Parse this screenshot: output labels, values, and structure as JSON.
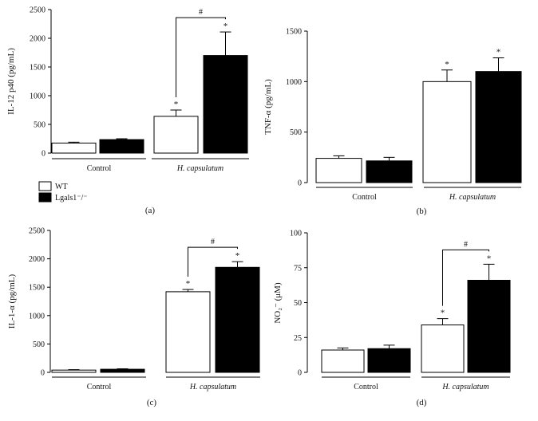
{
  "colors": {
    "wt": "#ffffff",
    "ko": "#000000",
    "stroke": "#000000"
  },
  "legend": {
    "wt_label": "WT",
    "ko_label": "Lgals1⁻/⁻"
  },
  "chart_data": [
    {
      "type": "bar",
      "panel_label": "(a)",
      "ylabel": "IL-12 p40 (pg/mL)",
      "ylim": [
        0,
        2500
      ],
      "yticks": [
        0,
        500,
        1000,
        1500,
        2000,
        2500
      ],
      "groups": [
        "Control",
        "H. capsulatum"
      ],
      "series": [
        {
          "name": "WT",
          "values": [
            175,
            640
          ],
          "errors": [
            15,
            110
          ]
        },
        {
          "name": "Lgals1⁻/⁻",
          "values": [
            235,
            1700
          ],
          "errors": [
            15,
            410
          ]
        }
      ],
      "stars": [
        "",
        "",
        "*",
        "*"
      ],
      "hash": {
        "group": 1,
        "label": "#"
      }
    },
    {
      "type": "bar",
      "panel_label": "(b)",
      "ylabel": "TNF-α (pg/mL)",
      "ylim": [
        0,
        1500
      ],
      "yticks": [
        0,
        500,
        1000,
        1500
      ],
      "groups": [
        "Control",
        "H. capsulatum"
      ],
      "series": [
        {
          "name": "WT",
          "values": [
            240,
            1000
          ],
          "errors": [
            25,
            115
          ]
        },
        {
          "name": "Lgals1⁻/⁻",
          "values": [
            215,
            1100
          ],
          "errors": [
            35,
            135
          ]
        }
      ],
      "stars": [
        "",
        "",
        "*",
        "*"
      ],
      "hash": null
    },
    {
      "type": "bar",
      "panel_label": "(c)",
      "ylabel": "IL-1-α (pg/mL)",
      "ylim": [
        0,
        2500
      ],
      "yticks": [
        0,
        500,
        1000,
        1500,
        2000,
        2500
      ],
      "groups": [
        "Control",
        "H. capsulatum"
      ],
      "series": [
        {
          "name": "WT",
          "values": [
            40,
            1420
          ],
          "errors": [
            8,
            40
          ]
        },
        {
          "name": "Lgals1⁻/⁻",
          "values": [
            55,
            1850
          ],
          "errors": [
            8,
            100
          ]
        }
      ],
      "stars": [
        "",
        "",
        "*",
        "*"
      ],
      "hash": {
        "group": 1,
        "label": "#"
      }
    },
    {
      "type": "bar",
      "panel_label": "(d)",
      "ylabel": "NO₂⁻ (μM)",
      "ylim": [
        0,
        100
      ],
      "yticks": [
        0,
        25,
        50,
        75,
        100
      ],
      "groups": [
        "Control",
        "H. capsulatum"
      ],
      "series": [
        {
          "name": "WT",
          "values": [
            16,
            34
          ],
          "errors": [
            1.5,
            4.5
          ]
        },
        {
          "name": "Lgals1⁻/⁻",
          "values": [
            17,
            66
          ],
          "errors": [
            2.5,
            11.5
          ]
        }
      ],
      "stars": [
        "",
        "",
        "*",
        "*"
      ],
      "hash": {
        "group": 1,
        "label": "#"
      }
    }
  ]
}
